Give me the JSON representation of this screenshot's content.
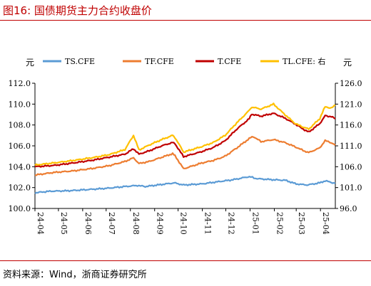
{
  "figure": {
    "title": "图16:  国债期货主力合约收盘价",
    "source": "资料来源：Wind，浙商证券研究所"
  },
  "chart_data": {
    "type": "line",
    "title": "",
    "y_left_unit": "元",
    "y_right_unit": "元",
    "y_left_range": [
      100.0,
      112.0
    ],
    "y_left_ticks": [
      "100.0",
      "102.0",
      "104.0",
      "106.0",
      "108.0",
      "110.0",
      "112.0"
    ],
    "y_right_range": [
      96.0,
      126.0
    ],
    "y_right_ticks": [
      "96.0",
      "101.0",
      "106.0",
      "111.0",
      "116.0",
      "121.0",
      "126.0"
    ],
    "x_ticks": [
      "24-04",
      "24-05",
      "24-06",
      "24-07",
      "24-08",
      "24-09",
      "24-10",
      "24-11",
      "24-12",
      "25-01",
      "25-02",
      "25-03",
      "25-04"
    ],
    "x_range": [
      "2024-04-01",
      "2025-04-20"
    ],
    "grid": false,
    "legend_position": "top",
    "series": [
      {
        "name": "TS.CFE",
        "axis": "left",
        "color": "#5b9bd5",
        "points": [
          [
            "2024-04-01",
            101.5
          ],
          [
            "2024-04-20",
            101.65
          ],
          [
            "2024-05-15",
            101.7
          ],
          [
            "2024-06-10",
            101.82
          ],
          [
            "2024-07-05",
            101.95
          ],
          [
            "2024-07-25",
            102.1
          ],
          [
            "2024-08-10",
            102.2
          ],
          [
            "2024-08-20",
            102.1
          ],
          [
            "2024-09-10",
            102.3
          ],
          [
            "2024-09-26",
            102.45
          ],
          [
            "2024-10-08",
            102.25
          ],
          [
            "2024-10-31",
            102.35
          ],
          [
            "2024-11-20",
            102.55
          ],
          [
            "2024-12-10",
            102.75
          ],
          [
            "2024-12-31",
            103.05
          ],
          [
            "2025-01-10",
            102.85
          ],
          [
            "2025-01-31",
            102.75
          ],
          [
            "2025-02-15",
            102.7
          ],
          [
            "2025-03-01",
            102.35
          ],
          [
            "2025-03-15",
            102.25
          ],
          [
            "2025-03-31",
            102.45
          ],
          [
            "2025-04-07",
            102.65
          ],
          [
            "2025-04-20",
            102.4
          ]
        ]
      },
      {
        "name": "TF.CFE",
        "axis": "left",
        "color": "#ed7d31",
        "points": [
          [
            "2024-04-01",
            103.2
          ],
          [
            "2024-04-25",
            103.45
          ],
          [
            "2024-05-20",
            103.6
          ],
          [
            "2024-06-15",
            103.85
          ],
          [
            "2024-07-05",
            104.1
          ],
          [
            "2024-07-25",
            104.5
          ],
          [
            "2024-08-05",
            104.85
          ],
          [
            "2024-08-12",
            104.3
          ],
          [
            "2024-08-25",
            104.5
          ],
          [
            "2024-09-10",
            104.9
          ],
          [
            "2024-09-24",
            105.25
          ],
          [
            "2024-09-27",
            105.05
          ],
          [
            "2024-10-08",
            103.8
          ],
          [
            "2024-10-31",
            104.35
          ],
          [
            "2024-11-15",
            104.6
          ],
          [
            "2024-11-30",
            105.0
          ],
          [
            "2024-12-15",
            105.8
          ],
          [
            "2024-12-31",
            106.7
          ],
          [
            "2025-01-05",
            106.9
          ],
          [
            "2025-01-15",
            106.4
          ],
          [
            "2025-01-31",
            106.6
          ],
          [
            "2025-02-15",
            106.3
          ],
          [
            "2025-02-28",
            105.9
          ],
          [
            "2025-03-10",
            105.55
          ],
          [
            "2025-03-17",
            105.35
          ],
          [
            "2025-03-31",
            105.8
          ],
          [
            "2025-04-07",
            106.5
          ],
          [
            "2025-04-15",
            106.3
          ],
          [
            "2025-04-20",
            106.05
          ]
        ]
      },
      {
        "name": "T.CFE",
        "axis": "right",
        "color": "#c00000",
        "points": [
          [
            "2024-04-01",
            106.0
          ],
          [
            "2024-04-25",
            106.3
          ],
          [
            "2024-05-20",
            106.9
          ],
          [
            "2024-06-15",
            107.6
          ],
          [
            "2024-07-05",
            108.3
          ],
          [
            "2024-07-25",
            109.0
          ],
          [
            "2024-08-05",
            110.3
          ],
          [
            "2024-08-12",
            109.0
          ],
          [
            "2024-08-25",
            109.8
          ],
          [
            "2024-09-10",
            111.0
          ],
          [
            "2024-09-24",
            111.8
          ],
          [
            "2024-09-27",
            111.5
          ],
          [
            "2024-10-08",
            108.4
          ],
          [
            "2024-10-31",
            109.6
          ],
          [
            "2024-11-15",
            110.6
          ],
          [
            "2024-11-30",
            112.2
          ],
          [
            "2024-12-15",
            115.0
          ],
          [
            "2024-12-31",
            117.5
          ],
          [
            "2025-01-03",
            118.6
          ],
          [
            "2025-01-15",
            118.1
          ],
          [
            "2025-01-31",
            118.8
          ],
          [
            "2025-02-15",
            117.6
          ],
          [
            "2025-02-28",
            116.2
          ],
          [
            "2025-03-10",
            115.0
          ],
          [
            "2025-03-17",
            114.3
          ],
          [
            "2025-03-31",
            116.3
          ],
          [
            "2025-04-07",
            118.2
          ],
          [
            "2025-04-15",
            118.0
          ],
          [
            "2025-04-20",
            117.5
          ]
        ]
      },
      {
        "name": "TL.CFE: 右",
        "axis": "right",
        "color": "#ffc000",
        "points": [
          [
            "2024-04-01",
            106.4
          ],
          [
            "2024-04-25",
            106.9
          ],
          [
            "2024-05-20",
            107.5
          ],
          [
            "2024-06-15",
            108.2
          ],
          [
            "2024-07-05",
            108.9
          ],
          [
            "2024-07-25",
            110.1
          ],
          [
            "2024-08-05",
            113.5
          ],
          [
            "2024-08-12",
            110.0
          ],
          [
            "2024-08-25",
            111.2
          ],
          [
            "2024-09-10",
            112.5
          ],
          [
            "2024-09-24",
            113.5
          ],
          [
            "2024-09-27",
            113.0
          ],
          [
            "2024-10-08",
            109.5
          ],
          [
            "2024-10-31",
            110.8
          ],
          [
            "2024-11-15",
            111.8
          ],
          [
            "2024-11-30",
            113.5
          ],
          [
            "2024-12-15",
            116.5
          ],
          [
            "2024-12-31",
            119.5
          ],
          [
            "2025-01-03",
            120.3
          ],
          [
            "2025-01-15",
            119.8
          ],
          [
            "2025-01-31",
            121.0
          ],
          [
            "2025-02-15",
            118.4
          ],
          [
            "2025-02-28",
            116.3
          ],
          [
            "2025-03-10",
            115.5
          ],
          [
            "2025-03-17",
            115.0
          ],
          [
            "2025-03-31",
            117.5
          ],
          [
            "2025-04-07",
            120.4
          ],
          [
            "2025-04-15",
            120.0
          ],
          [
            "2025-04-20",
            120.8
          ]
        ]
      }
    ]
  }
}
